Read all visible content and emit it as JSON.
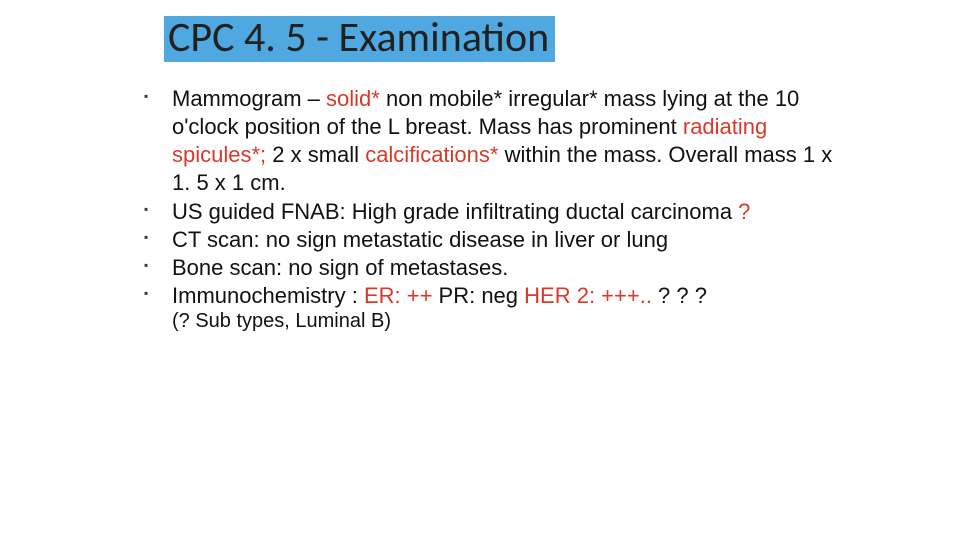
{
  "title": {
    "text": "CPC 4. 5 - Examination",
    "highlight_color": "#4fa8df",
    "text_color": "#212121"
  },
  "colors": {
    "red": "#d83a2a",
    "body_text": "#111111",
    "bullet": "#3a3a3a",
    "background": "#ffffff"
  },
  "bullets": [
    {
      "segments": [
        {
          "text": "Mammogram – ",
          "red": false
        },
        {
          "text": "solid* ",
          "red": true
        },
        {
          "text": "non mobile* irregular* mass lying at the 10 o'clock position of the L breast.  Mass has prominent ",
          "red": false
        },
        {
          "text": "radiating spicules*;",
          "red": true
        },
        {
          "text": " 2 x small ",
          "red": false
        },
        {
          "text": "calcifications* ",
          "red": true
        },
        {
          "text": "within the mass. Overall mass 1 x 1. 5 x 1 cm.",
          "red": false
        }
      ]
    },
    {
      "segments": [
        {
          "text": "US guided FNAB: High grade infiltrating ductal carcinoma ",
          "red": false
        },
        {
          "text": "?",
          "red": true
        }
      ]
    },
    {
      "segments": [
        {
          "text": "CT scan: no sign metastatic disease in liver or lung",
          "red": false
        }
      ]
    },
    {
      "segments": [
        {
          "text": "Bone scan: no sign of metastases.",
          "red": false
        }
      ]
    },
    {
      "segments": [
        {
          "text": "Immunochemistry : ",
          "red": false
        },
        {
          "text": "ER: ++ ",
          "red": true
        },
        {
          "text": " PR: neg  ",
          "red": false
        },
        {
          "text": "HER 2: +++.. ",
          "red": true
        },
        {
          "text": " ? ? ?",
          "red": false
        }
      ]
    }
  ],
  "subnote": "(? Sub types, Luminal B)"
}
